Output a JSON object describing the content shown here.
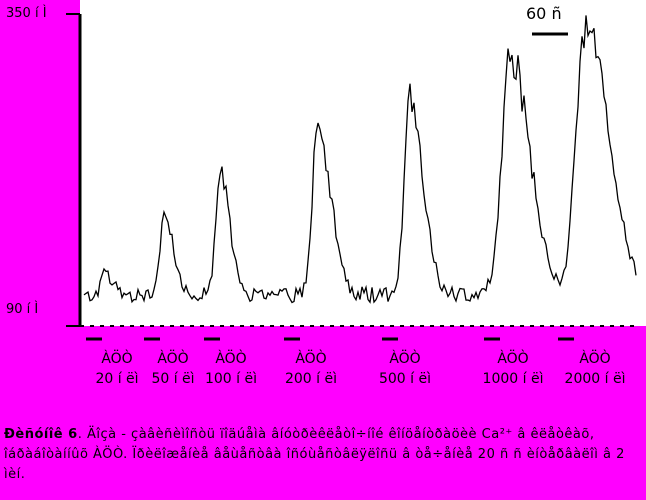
{
  "chart_data": {
    "type": "line",
    "title": "",
    "xlabel": "",
    "ylabel": "",
    "y_tick_labels": [
      "350 í Ì",
      "90 í Ì"
    ],
    "ylim": [
      90,
      350
    ],
    "scale_bar": "60 ñ",
    "grid": false,
    "legend": "none",
    "applications": [
      {
        "agent": "ÀÖÒ",
        "dose": "20 í ëì",
        "peak": 124
      },
      {
        "agent": "ÀÖÒ",
        "dose": "50 í ëì",
        "peak": 174
      },
      {
        "agent": "ÀÖÒ",
        "dose": "100 í ëì",
        "peak": 214
      },
      {
        "agent": "ÀÖÒ",
        "dose": "200 í ëì",
        "peak": 250
      },
      {
        "agent": "ÀÖÒ",
        "dose": "500 í ëì",
        "peak": 279
      },
      {
        "agent": "ÀÖÒ",
        "dose": "1000 í ëì",
        "peak": 320
      },
      {
        "agent": "ÀÖÒ",
        "dose": "2000 í ëì",
        "peak": 348
      }
    ],
    "baseline": 100,
    "colors": {
      "trace": "#000000",
      "background": "#ffffff",
      "page": "#ff00ff"
    }
  },
  "caption": {
    "figure_label": "Ðèñóíîê 6",
    "text": ". Äîçà - çàâèñèìîñòü ïîäúåìà âíóòðèêëåòî÷íîé êîíöåíòðàöèè Ca²⁺ â êëåòêàõ, îáðàáîòàííûõ ÀÖÒ. Ïðèëîæåíèå âåùåñòâà îñóùåñòâëÿëîñü â òå÷åíèå 20 ñ ñ èíòåðâàëîì â 2 ìèí."
  }
}
